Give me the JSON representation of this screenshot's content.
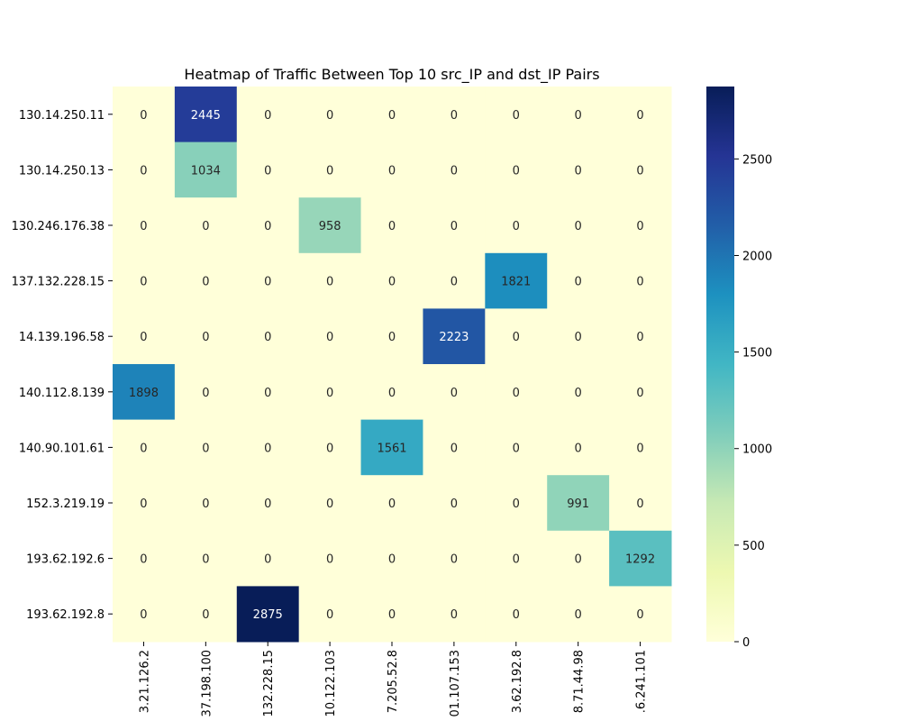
{
  "chart_data": {
    "type": "heatmap",
    "title": "Heatmap of Traffic Between Top 10 src_IP and dst_IP Pairs",
    "xlabel": "",
    "ylabel": "",
    "y_categories": [
      "130.14.250.11",
      "130.14.250.13",
      "130.246.176.38",
      "137.132.228.15",
      "14.139.196.58",
      "140.112.8.139",
      "140.90.101.61",
      "152.3.219.19",
      "193.62.192.6",
      "193.62.192.8"
    ],
    "x_categories": [
      "3.21.126.2",
      "37.198.100",
      "132.228.15",
      "10.122.103",
      "7.205.52.8",
      "01.107.153",
      "3.62.192.8",
      "8.71.44.98",
      ".6.241.101"
    ],
    "values": [
      [
        0,
        2445,
        0,
        0,
        0,
        0,
        0,
        0,
        0
      ],
      [
        0,
        1034,
        0,
        0,
        0,
        0,
        0,
        0,
        0
      ],
      [
        0,
        0,
        0,
        958,
        0,
        0,
        0,
        0,
        0
      ],
      [
        0,
        0,
        0,
        0,
        0,
        0,
        1821,
        0,
        0
      ],
      [
        0,
        0,
        0,
        0,
        0,
        2223,
        0,
        0,
        0
      ],
      [
        1898,
        0,
        0,
        0,
        0,
        0,
        0,
        0,
        0
      ],
      [
        0,
        0,
        0,
        0,
        1561,
        0,
        0,
        0,
        0
      ],
      [
        0,
        0,
        0,
        0,
        0,
        0,
        0,
        991,
        0
      ],
      [
        0,
        0,
        0,
        0,
        0,
        0,
        0,
        0,
        1292
      ],
      [
        0,
        0,
        2875,
        0,
        0,
        0,
        0,
        0,
        0
      ]
    ],
    "colormap": "YlGnBu",
    "vmin": 0,
    "vmax": 2875,
    "colorbar_ticks": [
      0,
      500,
      1000,
      1500,
      2000,
      2500
    ]
  }
}
